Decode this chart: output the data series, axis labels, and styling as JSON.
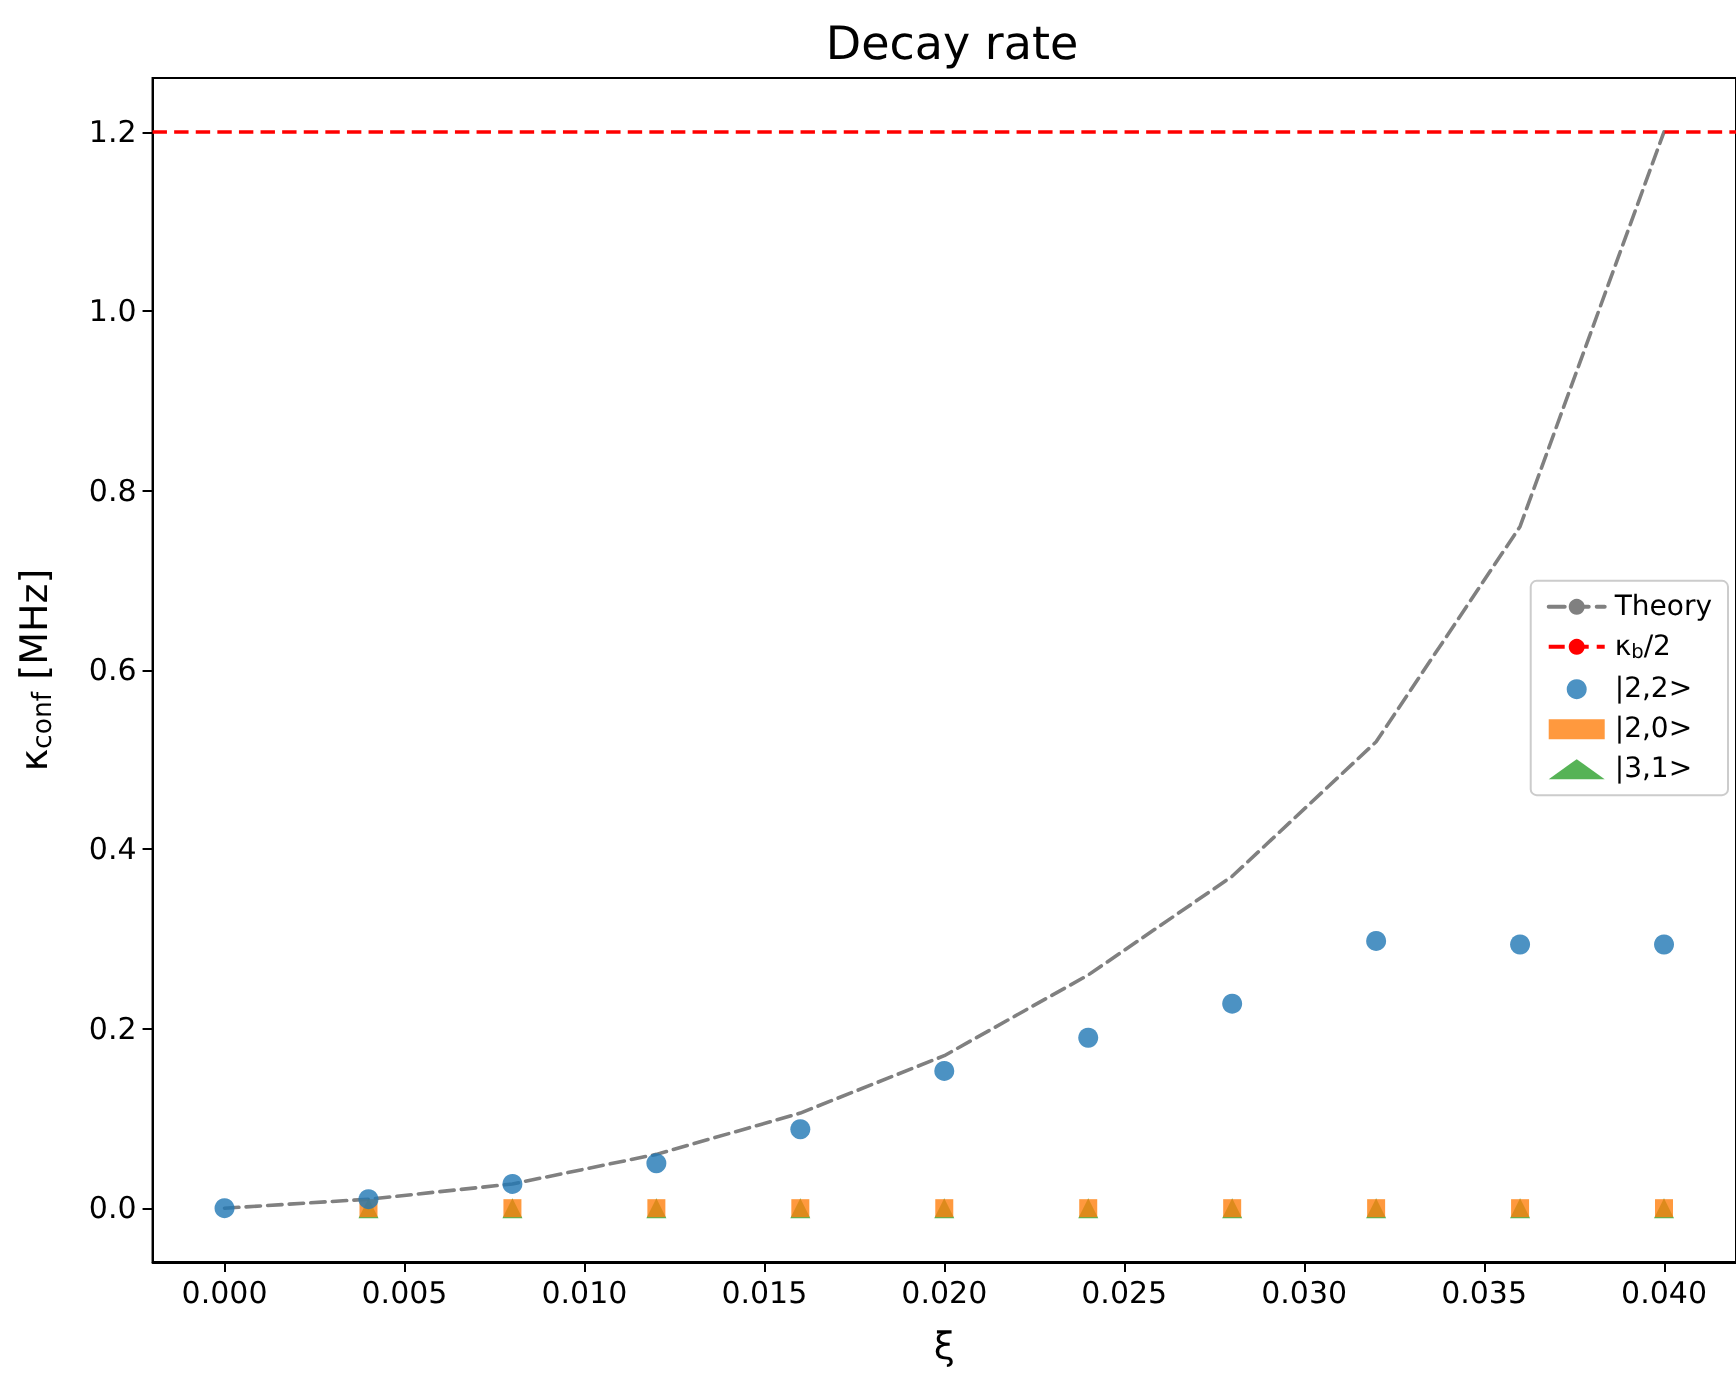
{
  "chart_data": {
    "type": "scatter",
    "title": "Decay rate",
    "xlabel": "ξ",
    "ylabel": "κ$_{conf}$ [MHz]",
    "xlim": [
      -0.002,
      0.042
    ],
    "xticks": [
      {
        "value": 0,
        "label": "0.000"
      },
      {
        "value": 0.005,
        "label": "0.005"
      },
      {
        "value": 0.01,
        "label": "0.010"
      },
      {
        "value": 0.015,
        "label": "0.015"
      },
      {
        "value": 0.02,
        "label": "0.020"
      },
      {
        "value": 0.025,
        "label": "0.025"
      },
      {
        "value": 0.03,
        "label": "0.030"
      },
      {
        "value": 0.035,
        "label": "0.035"
      },
      {
        "value": 0.04,
        "label": "0.040"
      }
    ],
    "ylim": [
      -0.06,
      1.26
    ],
    "yticks": [
      {
        "value": 0,
        "label": "0.0"
      },
      {
        "value": 0.2,
        "label": "0.2"
      },
      {
        "value": 0.4,
        "label": "0.4"
      },
      {
        "value": 0.6,
        "label": "0.6"
      },
      {
        "value": 0.8,
        "label": "0.8"
      },
      {
        "value": 1,
        "label": "1.0"
      },
      {
        "value": 1.2,
        "label": "1.2"
      }
    ],
    "grid": false,
    "legend": "right",
    "series": [
      {
        "name": "Theory",
        "type": "line",
        "color": "#808080",
        "line_style": "dashed",
        "marker": "none",
        "x": [
          0,
          0.004,
          0.008,
          0.012,
          0.016,
          0.02,
          0.024,
          0.028,
          0.032,
          0.036,
          0.04
        ],
        "values": [
          0,
          0.01,
          0.027,
          0.06,
          0.106,
          0.17,
          0.26,
          0.37,
          0.52,
          0.76,
          1.2
        ]
      },
      {
        "name": "|2,2>",
        "color": "#1f77b4",
        "marker": "circle",
        "x": [
          0,
          0.004,
          0.008,
          0.012,
          0.016,
          0.02,
          0.024,
          0.028,
          0.032,
          0.036,
          0.04
        ],
        "values": [
          0,
          0.01,
          0.027,
          0.05,
          0.088,
          0.153,
          0.19,
          0.228,
          0.298,
          0.294,
          0.294
        ]
      },
      {
        "name": "|2,0>",
        "color": "#ff7f0e",
        "marker": "square",
        "x": [
          0.004,
          0.008,
          0.012,
          0.016,
          0.02,
          0.024,
          0.028,
          0.032,
          0.036,
          0.04
        ],
        "values": [
          0,
          0,
          0,
          0,
          0,
          0,
          0,
          0,
          0,
          0
        ]
      },
      {
        "name": "|3,1>",
        "color": "#2ca02c",
        "marker": "triangle",
        "x": [
          0.004,
          0.008,
          0.012,
          0.016,
          0.02,
          0.024,
          0.028,
          0.032,
          0.036,
          0.04
        ],
        "values": [
          0,
          0,
          0,
          0,
          0,
          0,
          0,
          0,
          0,
          0
        ]
      }
    ],
    "ref_lines": [
      {
        "axis": "y",
        "value": 1.2,
        "label": "κ$_{b}$/2",
        "color": "#ff0000",
        "line_style": "dashed"
      }
    ]
  }
}
